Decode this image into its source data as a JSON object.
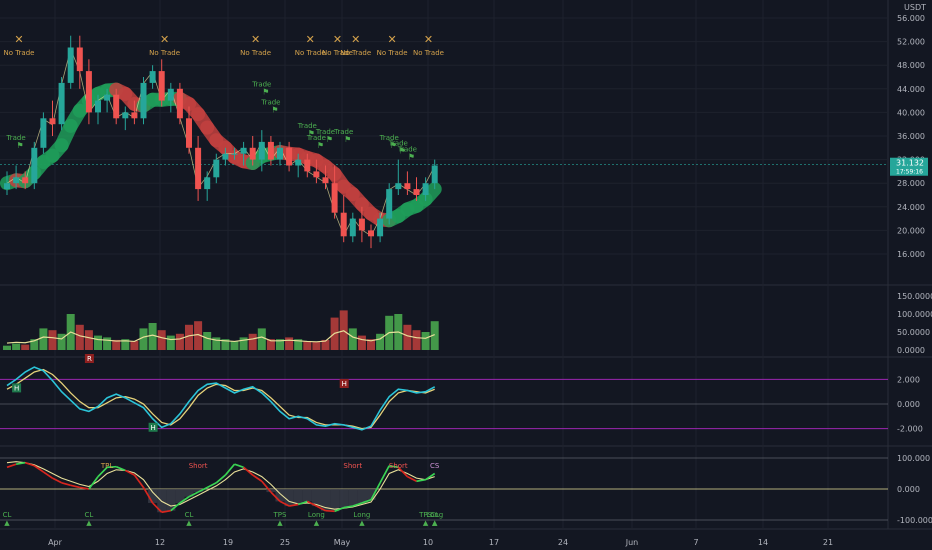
{
  "currency": "USDT",
  "colors": {
    "background": "#131722",
    "up": "#26a69a",
    "down": "#ef5350",
    "trade": "#4caf50",
    "no_trade": "#d4a24c",
    "ribbon_up": "#1f9e5a",
    "ribbon_down": "#c2413f",
    "signal_line": "#e8e09a",
    "wave_fast": "#2bc4d8",
    "wave_slow": "#e6d27a",
    "osc_green": "#39d353",
    "osc_red": "#d7261e",
    "band": "#9c27b0"
  },
  "price_axis": {
    "ticks": [
      "56.000",
      "52.000",
      "48.000",
      "44.000",
      "40.000",
      "36.000",
      "32.000",
      "28.000",
      "24.000",
      "20.000",
      "16.000"
    ],
    "tick_values": [
      56,
      52,
      48,
      44,
      40,
      36,
      32,
      28,
      24,
      20,
      16
    ],
    "last_price": "31.132",
    "countdown": "17:59:16"
  },
  "volume_axis": {
    "ticks": [
      "150.0000",
      "100.0000",
      "50.0000",
      "0.0000"
    ],
    "tick_values": [
      150,
      100,
      50,
      0
    ]
  },
  "wave_axis": {
    "ticks": [
      "2.000",
      "0.000",
      "-2.000"
    ],
    "tick_values": [
      2,
      0,
      -2
    ]
  },
  "osc_axis": {
    "ticks": [
      "100.000",
      "0.000",
      "-100.000"
    ],
    "tick_values": [
      100,
      0,
      -100
    ]
  },
  "time_axis": {
    "labels": [
      "Apr",
      "12",
      "19",
      "25",
      "May",
      "10",
      "17",
      "24",
      "Jun",
      "7",
      "14",
      "21"
    ]
  },
  "labels": {
    "no_trade": "No Trade",
    "trade": "Trade",
    "tpl": "TPL",
    "tps": "TPS",
    "short": "Short",
    "long": "Long",
    "cl": "CL",
    "cs": "CS",
    "h": "H",
    "r": "R"
  },
  "no_trade_markers": [
    0,
    16,
    26,
    32,
    35,
    37,
    41,
    45
  ],
  "trade_markers": [
    {
      "bar": 1,
      "value": 34
    },
    {
      "bar": 28,
      "value": 43
    },
    {
      "bar": 29,
      "value": 40
    },
    {
      "bar": 33,
      "value": 36
    },
    {
      "bar": 34,
      "value": 34
    },
    {
      "bar": 35,
      "value": 35
    },
    {
      "bar": 37,
      "value": 35
    },
    {
      "bar": 42,
      "value": 34
    },
    {
      "bar": 43,
      "value": 33
    },
    {
      "bar": 44,
      "value": 32
    }
  ],
  "chart_data": {
    "type": "candlestick",
    "candles": [
      {
        "o": 27,
        "h": 30,
        "l": 26,
        "c": 28
      },
      {
        "o": 28,
        "h": 31,
        "l": 27,
        "c": 29
      },
      {
        "o": 29,
        "h": 30,
        "l": 27,
        "c": 28
      },
      {
        "o": 28,
        "h": 35,
        "l": 27,
        "c": 34
      },
      {
        "o": 34,
        "h": 40,
        "l": 33,
        "c": 39
      },
      {
        "o": 39,
        "h": 42,
        "l": 36,
        "c": 38
      },
      {
        "o": 38,
        "h": 46,
        "l": 37,
        "c": 45
      },
      {
        "o": 45,
        "h": 53,
        "l": 44,
        "c": 51
      },
      {
        "o": 51,
        "h": 53,
        "l": 44,
        "c": 47
      },
      {
        "o": 47,
        "h": 49,
        "l": 38,
        "c": 40
      },
      {
        "o": 40,
        "h": 43,
        "l": 38,
        "c": 42
      },
      {
        "o": 42,
        "h": 44,
        "l": 40,
        "c": 43
      },
      {
        "o": 43,
        "h": 44,
        "l": 38,
        "c": 39
      },
      {
        "o": 39,
        "h": 41,
        "l": 37,
        "c": 40
      },
      {
        "o": 40,
        "h": 42,
        "l": 38,
        "c": 39
      },
      {
        "o": 39,
        "h": 46,
        "l": 38,
        "c": 45
      },
      {
        "o": 45,
        "h": 48,
        "l": 44,
        "c": 47
      },
      {
        "o": 47,
        "h": 49,
        "l": 41,
        "c": 42
      },
      {
        "o": 42,
        "h": 45,
        "l": 40,
        "c": 44
      },
      {
        "o": 44,
        "h": 45,
        "l": 38,
        "c": 39
      },
      {
        "o": 39,
        "h": 41,
        "l": 33,
        "c": 34
      },
      {
        "o": 34,
        "h": 36,
        "l": 25,
        "c": 27
      },
      {
        "o": 27,
        "h": 30,
        "l": 25,
        "c": 29
      },
      {
        "o": 29,
        "h": 33,
        "l": 28,
        "c": 32
      },
      {
        "o": 32,
        "h": 34,
        "l": 31,
        "c": 33
      },
      {
        "o": 33,
        "h": 34,
        "l": 32,
        "c": 33
      },
      {
        "o": 33,
        "h": 35,
        "l": 31,
        "c": 34
      },
      {
        "o": 34,
        "h": 36,
        "l": 31,
        "c": 32
      },
      {
        "o": 32,
        "h": 37,
        "l": 30,
        "c": 35
      },
      {
        "o": 35,
        "h": 36,
        "l": 31,
        "c": 32
      },
      {
        "o": 32,
        "h": 35,
        "l": 31,
        "c": 34
      },
      {
        "o": 34,
        "h": 35,
        "l": 30,
        "c": 31
      },
      {
        "o": 31,
        "h": 33,
        "l": 29,
        "c": 32
      },
      {
        "o": 32,
        "h": 33,
        "l": 29,
        "c": 30
      },
      {
        "o": 30,
        "h": 32,
        "l": 28,
        "c": 29
      },
      {
        "o": 29,
        "h": 31,
        "l": 27,
        "c": 28
      },
      {
        "o": 28,
        "h": 31,
        "l": 22,
        "c": 23
      },
      {
        "o": 23,
        "h": 26,
        "l": 18,
        "c": 19
      },
      {
        "o": 19,
        "h": 23,
        "l": 18,
        "c": 22
      },
      {
        "o": 22,
        "h": 24,
        "l": 18,
        "c": 20
      },
      {
        "o": 20,
        "h": 21,
        "l": 17,
        "c": 19
      },
      {
        "o": 19,
        "h": 23,
        "l": 18,
        "c": 22
      },
      {
        "o": 22,
        "h": 28,
        "l": 21,
        "c": 27
      },
      {
        "o": 27,
        "h": 32,
        "l": 26,
        "c": 28
      },
      {
        "o": 28,
        "h": 30,
        "l": 26,
        "c": 27
      },
      {
        "o": 27,
        "h": 29,
        "l": 25,
        "c": 26
      },
      {
        "o": 26,
        "h": 29,
        "l": 25,
        "c": 28
      },
      {
        "o": 28,
        "h": 32,
        "l": 27,
        "c": 31
      }
    ],
    "volume": [
      12,
      18,
      15,
      30,
      60,
      55,
      45,
      100,
      70,
      55,
      40,
      35,
      28,
      30,
      25,
      60,
      75,
      55,
      40,
      45,
      70,
      80,
      50,
      35,
      30,
      25,
      35,
      45,
      60,
      30,
      30,
      35,
      30,
      25,
      22,
      28,
      90,
      110,
      60,
      40,
      30,
      45,
      95,
      100,
      70,
      55,
      50,
      80
    ],
    "wave_fast": [
      1.5,
      2.0,
      2.6,
      3.0,
      2.7,
      1.9,
      1.0,
      0.3,
      -0.4,
      -0.6,
      -0.2,
      0.5,
      0.8,
      0.5,
      0.1,
      -0.3,
      -1.2,
      -1.9,
      -1.6,
      -0.8,
      0.2,
      1.1,
      1.6,
      1.7,
      1.3,
      0.9,
      1.2,
      1.4,
      0.9,
      0.2,
      -0.6,
      -1.2,
      -1.0,
      -1.2,
      -1.7,
      -1.8,
      -1.6,
      -1.7,
      -1.9,
      -2.1,
      -1.8,
      -0.5,
      0.6,
      1.2,
      1.1,
      0.9,
      1.0,
      1.4
    ],
    "wave_slow": [
      1.2,
      1.6,
      2.1,
      2.6,
      2.8,
      2.4,
      1.7,
      0.9,
      0.2,
      -0.3,
      -0.3,
      0.1,
      0.5,
      0.6,
      0.4,
      0.0,
      -0.8,
      -1.5,
      -1.7,
      -1.2,
      -0.3,
      0.7,
      1.3,
      1.6,
      1.5,
      1.1,
      1.1,
      1.3,
      1.1,
      0.5,
      -0.2,
      -0.9,
      -1.1,
      -1.1,
      -1.5,
      -1.7,
      -1.7,
      -1.7,
      -1.8,
      -2.0,
      -1.9,
      -0.9,
      0.2,
      0.9,
      1.1,
      1.0,
      0.9,
      1.2
    ],
    "osc_fast": [
      70,
      80,
      85,
      75,
      55,
      35,
      20,
      12,
      5,
      0,
      40,
      70,
      72,
      60,
      45,
      5,
      -45,
      -75,
      -70,
      -45,
      -25,
      -10,
      5,
      20,
      45,
      80,
      70,
      45,
      25,
      -10,
      -40,
      -55,
      -50,
      -40,
      -55,
      -70,
      -72,
      -60,
      -55,
      -45,
      -35,
      20,
      75,
      70,
      40,
      25,
      30,
      50
    ],
    "osc_slow": [
      85,
      88,
      85,
      78,
      65,
      50,
      35,
      25,
      15,
      8,
      25,
      50,
      62,
      60,
      52,
      30,
      -10,
      -40,
      -55,
      -50,
      -35,
      -20,
      -5,
      10,
      30,
      55,
      65,
      55,
      40,
      15,
      -15,
      -40,
      -48,
      -45,
      -50,
      -60,
      -65,
      -62,
      -58,
      -50,
      -42,
      0,
      50,
      62,
      50,
      35,
      30,
      40
    ]
  }
}
